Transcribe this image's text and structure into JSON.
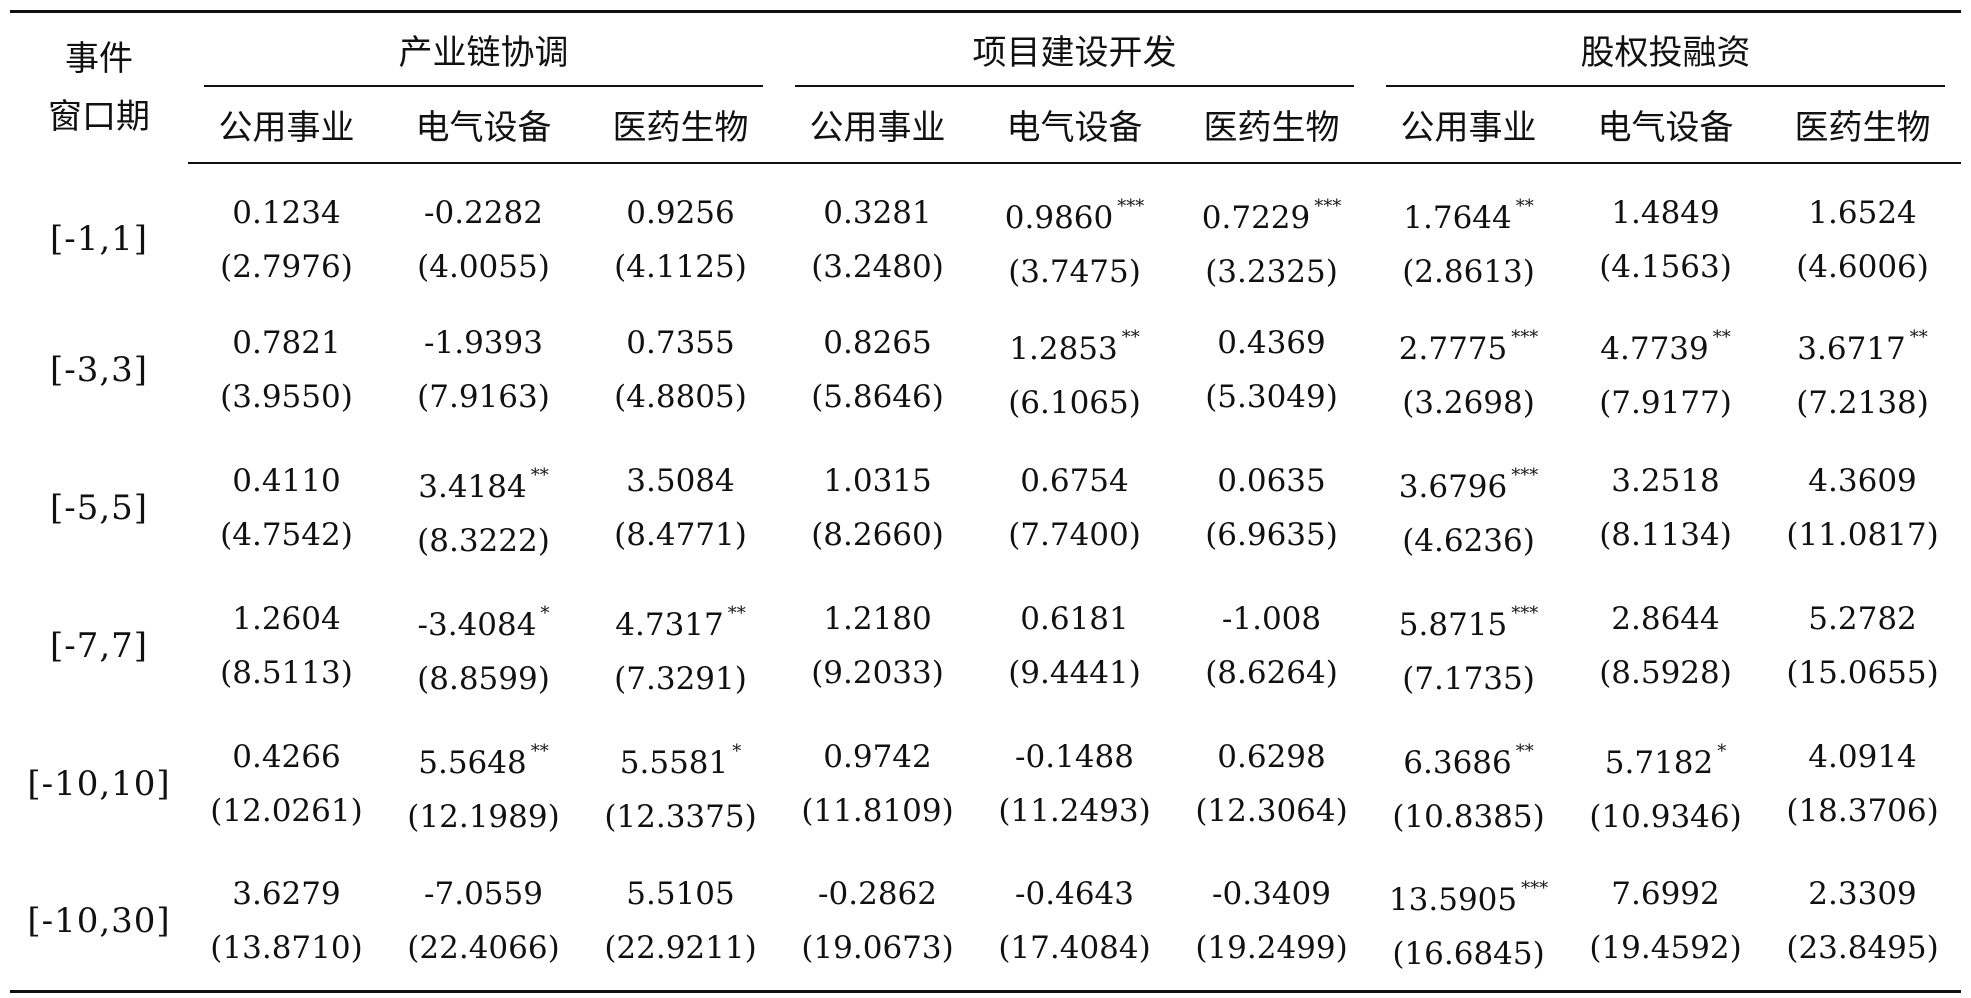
{
  "table": {
    "corner": [
      "事件",
      "窗口期"
    ],
    "groups": [
      "产业链协调",
      "项目建设开发",
      "股权投融资"
    ],
    "subheaders": [
      "公用事业",
      "电气设备",
      "医药生物"
    ],
    "rows": [
      {
        "window": "[-1,1]",
        "cells": [
          {
            "coef": "0.1234",
            "stars": "",
            "se": "(2.7976)"
          },
          {
            "coef": "-0.2282",
            "stars": "",
            "se": "(4.0055)"
          },
          {
            "coef": "0.9256",
            "stars": "",
            "se": "(4.1125)"
          },
          {
            "coef": "0.3281",
            "stars": "",
            "se": "(3.2480)"
          },
          {
            "coef": "0.9860",
            "stars": "***",
            "se": "(3.7475)"
          },
          {
            "coef": "0.7229",
            "stars": "***",
            "se": "(3.2325)"
          },
          {
            "coef": "1.7644",
            "stars": "**",
            "se": "(2.8613)"
          },
          {
            "coef": "1.4849",
            "stars": "",
            "se": "(4.1563)"
          },
          {
            "coef": "1.6524",
            "stars": "",
            "se": "(4.6006)"
          }
        ]
      },
      {
        "window": "[-3,3]",
        "cells": [
          {
            "coef": "0.7821",
            "stars": "",
            "se": "(3.9550)"
          },
          {
            "coef": "-1.9393",
            "stars": "",
            "se": "(7.9163)"
          },
          {
            "coef": "0.7355",
            "stars": "",
            "se": "(4.8805)"
          },
          {
            "coef": "0.8265",
            "stars": "",
            "se": "(5.8646)"
          },
          {
            "coef": "1.2853",
            "stars": "**",
            "se": "(6.1065)"
          },
          {
            "coef": "0.4369",
            "stars": "",
            "se": "(5.3049)"
          },
          {
            "coef": "2.7775",
            "stars": "***",
            "se": "(3.2698)"
          },
          {
            "coef": "4.7739",
            "stars": "**",
            "se": "(7.9177)"
          },
          {
            "coef": "3.6717",
            "stars": "**",
            "se": "(7.2138)"
          }
        ]
      },
      {
        "window": "[-5,5]",
        "cells": [
          {
            "coef": "0.4110",
            "stars": "",
            "se": "(4.7542)"
          },
          {
            "coef": "3.4184",
            "stars": "**",
            "se": "(8.3222)"
          },
          {
            "coef": "3.5084",
            "stars": "",
            "se": "(8.4771)"
          },
          {
            "coef": "1.0315",
            "stars": "",
            "se": "(8.2660)"
          },
          {
            "coef": "0.6754",
            "stars": "",
            "se": "(7.7400)"
          },
          {
            "coef": "0.0635",
            "stars": "",
            "se": "(6.9635)"
          },
          {
            "coef": "3.6796",
            "stars": "***",
            "se": "(4.6236)"
          },
          {
            "coef": "3.2518",
            "stars": "",
            "se": "(8.1134)"
          },
          {
            "coef": "4.3609",
            "stars": "",
            "se": "(11.0817)"
          }
        ]
      },
      {
        "window": "[-7,7]",
        "cells": [
          {
            "coef": "1.2604",
            "stars": "",
            "se": "(8.5113)"
          },
          {
            "coef": "-3.4084",
            "stars": "*",
            "se": "(8.8599)"
          },
          {
            "coef": "4.7317",
            "stars": "**",
            "se": "(7.3291)"
          },
          {
            "coef": "1.2180",
            "stars": "",
            "se": "(9.2033)"
          },
          {
            "coef": "0.6181",
            "stars": "",
            "se": "(9.4441)"
          },
          {
            "coef": "-1.008",
            "stars": "",
            "se": "(8.6264)"
          },
          {
            "coef": "5.8715",
            "stars": "***",
            "se": "(7.1735)"
          },
          {
            "coef": "2.8644",
            "stars": "",
            "se": "(8.5928)"
          },
          {
            "coef": "5.2782",
            "stars": "",
            "se": "(15.0655)"
          }
        ]
      },
      {
        "window": "[-10,10]",
        "cells": [
          {
            "coef": "0.4266",
            "stars": "",
            "se": "(12.0261)"
          },
          {
            "coef": "5.5648",
            "stars": "**",
            "se": "(12.1989)"
          },
          {
            "coef": "5.5581",
            "stars": "*",
            "se": "(12.3375)"
          },
          {
            "coef": "0.9742",
            "stars": "",
            "se": "(11.8109)"
          },
          {
            "coef": "-0.1488",
            "stars": "",
            "se": "(11.2493)"
          },
          {
            "coef": "0.6298",
            "stars": "",
            "se": "(12.3064)"
          },
          {
            "coef": "6.3686",
            "stars": "**",
            "se": "(10.8385)"
          },
          {
            "coef": "5.7182",
            "stars": "*",
            "se": "(10.9346)"
          },
          {
            "coef": "4.0914",
            "stars": "",
            "se": "(18.3706)"
          }
        ]
      },
      {
        "window": "[-10,30]",
        "cells": [
          {
            "coef": "3.6279",
            "stars": "",
            "se": "(13.8710)"
          },
          {
            "coef": "-7.0559",
            "stars": "",
            "se": "(22.4066)"
          },
          {
            "coef": "5.5105",
            "stars": "",
            "se": "(22.9211)"
          },
          {
            "coef": "-0.2862",
            "stars": "",
            "se": "(19.0673)"
          },
          {
            "coef": "-0.4643",
            "stars": "",
            "se": "(17.4084)"
          },
          {
            "coef": "-0.3409",
            "stars": "",
            "se": "(19.2499)"
          },
          {
            "coef": "13.5905",
            "stars": "***",
            "se": "(16.6845)"
          },
          {
            "coef": "7.6992",
            "stars": "",
            "se": "(19.4592)"
          },
          {
            "coef": "2.3309",
            "stars": "",
            "se": "(23.8495)"
          }
        ]
      }
    ]
  }
}
